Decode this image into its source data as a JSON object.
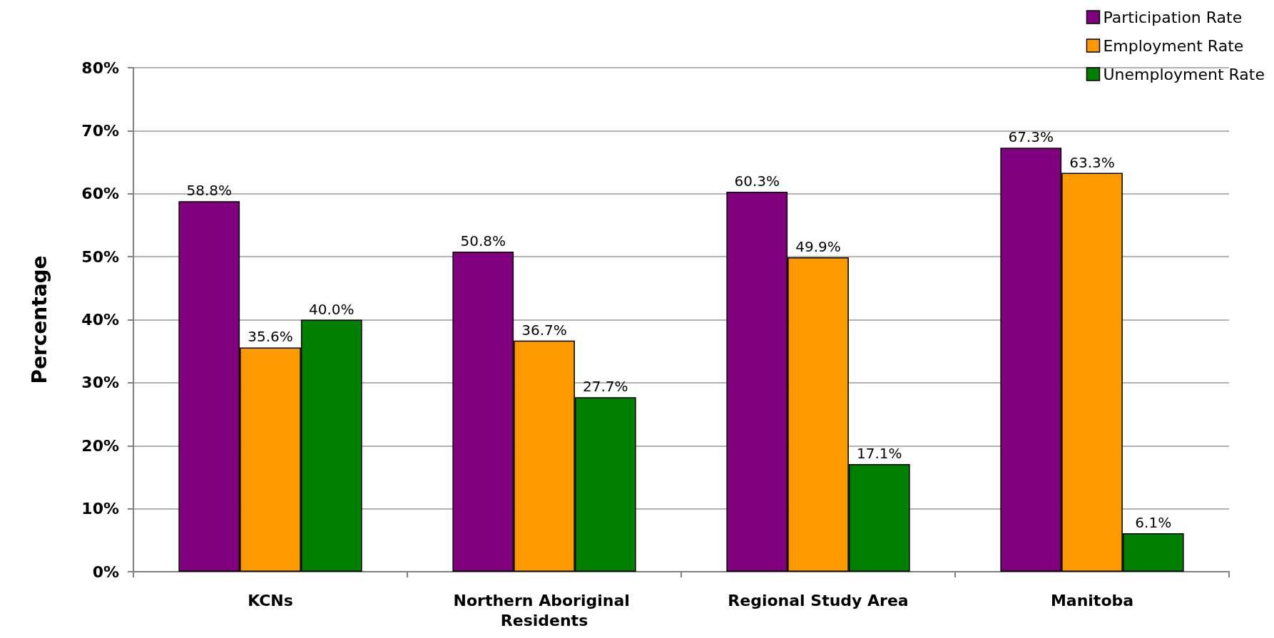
{
  "chart_data": {
    "type": "bar",
    "ylabel": "Percentage",
    "categories": [
      "KCNs",
      "Northern Aboriginal Residents",
      "Regional Study Area",
      "Manitoba"
    ],
    "series": [
      {
        "name": "Participation Rate",
        "color": "#800080",
        "values": [
          58.8,
          50.8,
          60.3,
          67.3
        ],
        "value_labels": [
          "58.8%",
          "50.8%",
          "60.3%",
          "67.3%"
        ]
      },
      {
        "name": "Employment Rate",
        "color": "#ff9900",
        "values": [
          35.6,
          36.7,
          49.9,
          63.3
        ],
        "value_labels": [
          "35.6%",
          "36.7%",
          "49.9%",
          "63.3%"
        ]
      },
      {
        "name": "Unemployment Rate",
        "color": "#008000",
        "values": [
          40.0,
          27.7,
          17.1,
          6.1
        ],
        "value_labels": [
          "40.0%",
          "27.7%",
          "17.1%",
          "6.1%"
        ]
      }
    ],
    "ylim": [
      0,
      80
    ],
    "yticks": [
      {
        "value": 0,
        "label": "0%"
      },
      {
        "value": 10,
        "label": "10%"
      },
      {
        "value": 20,
        "label": "20%"
      },
      {
        "value": 30,
        "label": "30%"
      },
      {
        "value": 40,
        "label": "40%"
      },
      {
        "value": 50,
        "label": "50%"
      },
      {
        "value": 60,
        "label": "60%"
      },
      {
        "value": 70,
        "label": "70%"
      },
      {
        "value": 80,
        "label": "80%"
      }
    ],
    "grid": "y",
    "legend": "top right"
  }
}
